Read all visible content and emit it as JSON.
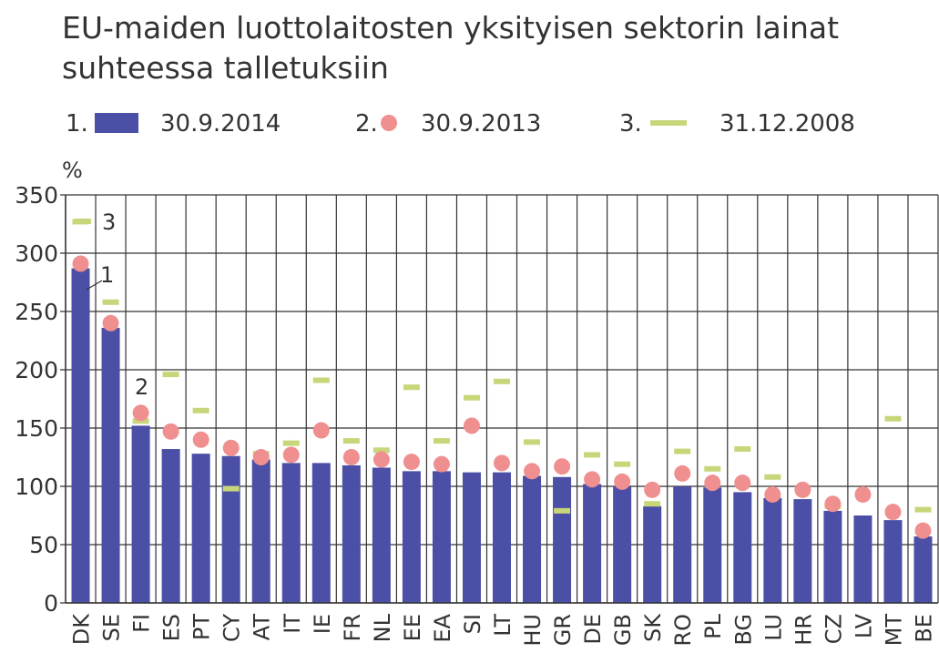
{
  "chart_data": {
    "type": "bar",
    "title_lines": [
      "EU-maiden luottolaitosten yksityisen sektorin lainat",
      "suhteessa talletuksiin"
    ],
    "y_label": "%",
    "categories": [
      "DK",
      "SE",
      "FI",
      "ES",
      "PT",
      "CY",
      "AT",
      "IT",
      "IE",
      "FR",
      "NL",
      "EE",
      "EA",
      "SI",
      "LT",
      "HU",
      "GR",
      "DE",
      "GB",
      "SK",
      "RO",
      "PL",
      "BG",
      "LU",
      "HR",
      "CZ",
      "LV",
      "MT",
      "BE"
    ],
    "series": [
      {
        "name": "30.9.2014",
        "number": "1.",
        "mark": "bar",
        "color": "#4b4fa6",
        "values": [
          287,
          236,
          152,
          132,
          128,
          126,
          123,
          120,
          120,
          118,
          116,
          113,
          113,
          112,
          112,
          109,
          108,
          102,
          100,
          83,
          100,
          99,
          95,
          90,
          89,
          79,
          75,
          71,
          57
        ]
      },
      {
        "name": "30.9.2013",
        "number": "2.",
        "mark": "dot",
        "color": "#f08f8f",
        "values": [
          291,
          240,
          163,
          147,
          140,
          133,
          125,
          127,
          148,
          125,
          123,
          121,
          119,
          152,
          120,
          113,
          117,
          106,
          104,
          97,
          111,
          103,
          103,
          93,
          97,
          85,
          93,
          78,
          62
        ]
      },
      {
        "name": "31.12.2008",
        "number": "3.",
        "mark": "dash",
        "color": "#c8d67a",
        "values": [
          327,
          258,
          156,
          196,
          165,
          98,
          128,
          137,
          191,
          139,
          131,
          185,
          139,
          176,
          190,
          138,
          79,
          127,
          119,
          85,
          130,
          115,
          132,
          108,
          null,
          83,
          null,
          158,
          80
        ]
      }
    ],
    "annotations": [
      "3",
      "1",
      "2"
    ],
    "ylim": [
      0,
      350
    ],
    "yticks": [
      0,
      50,
      100,
      150,
      200,
      250,
      300,
      350
    ],
    "grid": true
  }
}
